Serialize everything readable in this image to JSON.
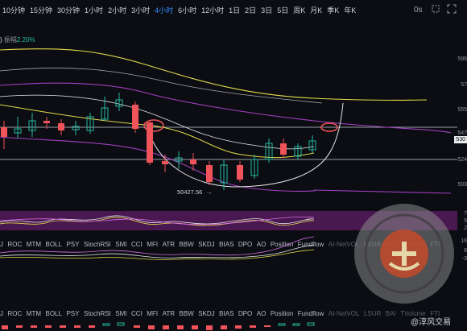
{
  "toolbar": {
    "timeframes": [
      {
        "label": "10分钟",
        "active": false
      },
      {
        "label": "15分钟",
        "active": false
      },
      {
        "label": "30分钟",
        "active": false
      },
      {
        "label": "1小时",
        "active": false
      },
      {
        "label": "2小时",
        "active": false
      },
      {
        "label": "3小时",
        "active": false
      },
      {
        "label": "4小时",
        "active": true
      },
      {
        "label": "6小时",
        "active": false
      },
      {
        "label": "12小时",
        "active": false
      },
      {
        "label": "1日",
        "active": false
      },
      {
        "label": "2日",
        "active": false
      },
      {
        "label": "3日",
        "active": false
      },
      {
        "label": "5日",
        "active": false
      },
      {
        "label": "周K",
        "active": false
      },
      {
        "label": "月K",
        "active": false
      },
      {
        "label": "季K",
        "active": false
      },
      {
        "label": "年K",
        "active": false
      }
    ],
    "interval_label": "0s"
  },
  "chart_header": {
    "amplitude_label": "振幅",
    "amplitude_value": "2.20%"
  },
  "price_axis": [
    "596",
    "57",
    "555",
    "547",
    "530",
    "524",
    "503"
  ],
  "current_price": "530",
  "low_annotation": "50427.56",
  "indicators": [
    "J",
    "ROC",
    "MTM",
    "BOLL",
    "PSY",
    "StochRSI",
    "SMI",
    "CCI",
    "MFI",
    "ATR",
    "BBW",
    "SKDJ",
    "BIAS",
    "DPO",
    "AO",
    "Position",
    "Fundflow",
    "AI-NetVOL",
    "LSUR",
    "BAI",
    "TVolume",
    "FTI"
  ],
  "osc1_axis": [
    "7",
    "5",
    "2"
  ],
  "osc2_axis": [
    "16",
    "8",
    "-3"
  ],
  "watermark": {
    "text": "@淳风交易"
  },
  "colors": {
    "bg": "#0b0d12",
    "up": "#26b9a0",
    "down": "#f0545a",
    "active": "#2f8cff",
    "purple": "#a23fc0",
    "yellow": "#e3d94a",
    "white": "#e6e8ec"
  }
}
